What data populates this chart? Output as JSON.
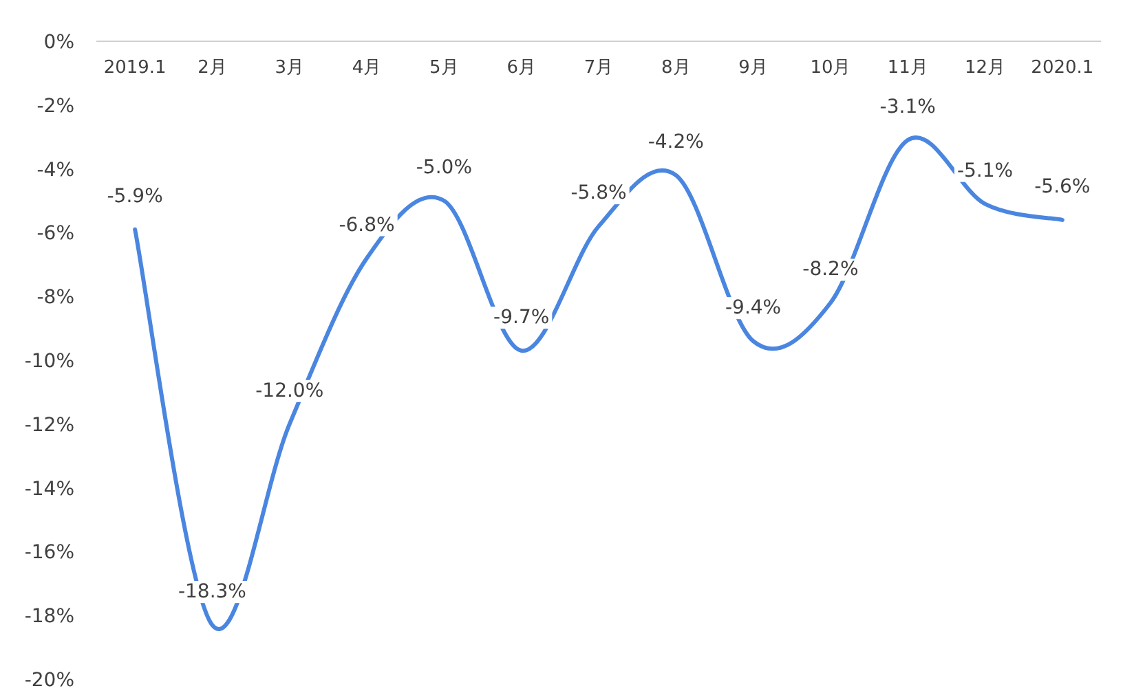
{
  "chart_data": {
    "type": "line",
    "categories": [
      "2019.1",
      "2月",
      "3月",
      "4月",
      "5月",
      "6月",
      "7月",
      "8月",
      "9月",
      "10月",
      "11月",
      "12月",
      "2020.1"
    ],
    "series": [
      {
        "color": "#4a86e0",
        "values": [
          -5.9,
          -18.3,
          -12.0,
          -6.8,
          -5.0,
          -9.7,
          -5.8,
          -4.2,
          -9.4,
          -8.2,
          -3.1,
          -5.1,
          -5.6
        ],
        "value_labels": [
          "-5.9%",
          "-18.3%",
          "-12.0%",
          "-6.8%",
          "-5.0%",
          "-9.7%",
          "-5.8%",
          "-4.2%",
          "-9.4%",
          "-8.2%",
          "-3.1%",
          "-5.1%",
          "-5.6%"
        ]
      }
    ],
    "ylim": [
      -20,
      0
    ],
    "yticks": [
      {
        "value": 0,
        "label": "0%"
      },
      {
        "value": -2,
        "label": "-2%"
      },
      {
        "value": -4,
        "label": "-4%"
      },
      {
        "value": -6,
        "label": "-6%"
      },
      {
        "value": -8,
        "label": "-8%"
      },
      {
        "value": -10,
        "label": "-10%"
      },
      {
        "value": -12,
        "label": "-12%"
      },
      {
        "value": -14,
        "label": "-14%"
      },
      {
        "value": -16,
        "label": "-16%"
      },
      {
        "value": -18,
        "label": "-18%"
      },
      {
        "value": -20,
        "label": "-20%"
      }
    ],
    "grid": false,
    "marker": "none",
    "line_style": "solid"
  }
}
